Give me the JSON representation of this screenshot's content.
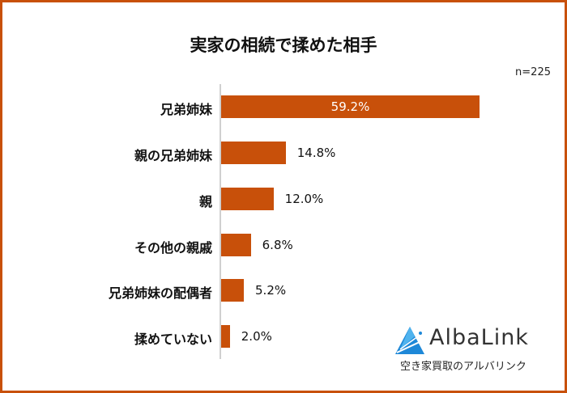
{
  "chart_data": {
    "type": "bar",
    "orientation": "horizontal",
    "title": "実家の相続で揉めた相手",
    "sample_size": "n=225",
    "categories": [
      "兄弟姉妹",
      "親の兄弟姉妹",
      "親",
      "その他の親戚",
      "兄弟姉妹の配偶者",
      "揉めていない"
    ],
    "values": [
      59.2,
      14.8,
      12.0,
      6.8,
      5.2,
      2.0
    ],
    "value_labels": [
      "59.2%",
      "14.8%",
      "12.0%",
      "6.8%",
      "5.2%",
      "2.0%"
    ],
    "xlabel": "",
    "ylabel": "",
    "grid": false,
    "bar_color": "#c8500a"
  },
  "brand": {
    "name": "AlbaLink",
    "tagline": "空き家買取のアルバリンク"
  }
}
